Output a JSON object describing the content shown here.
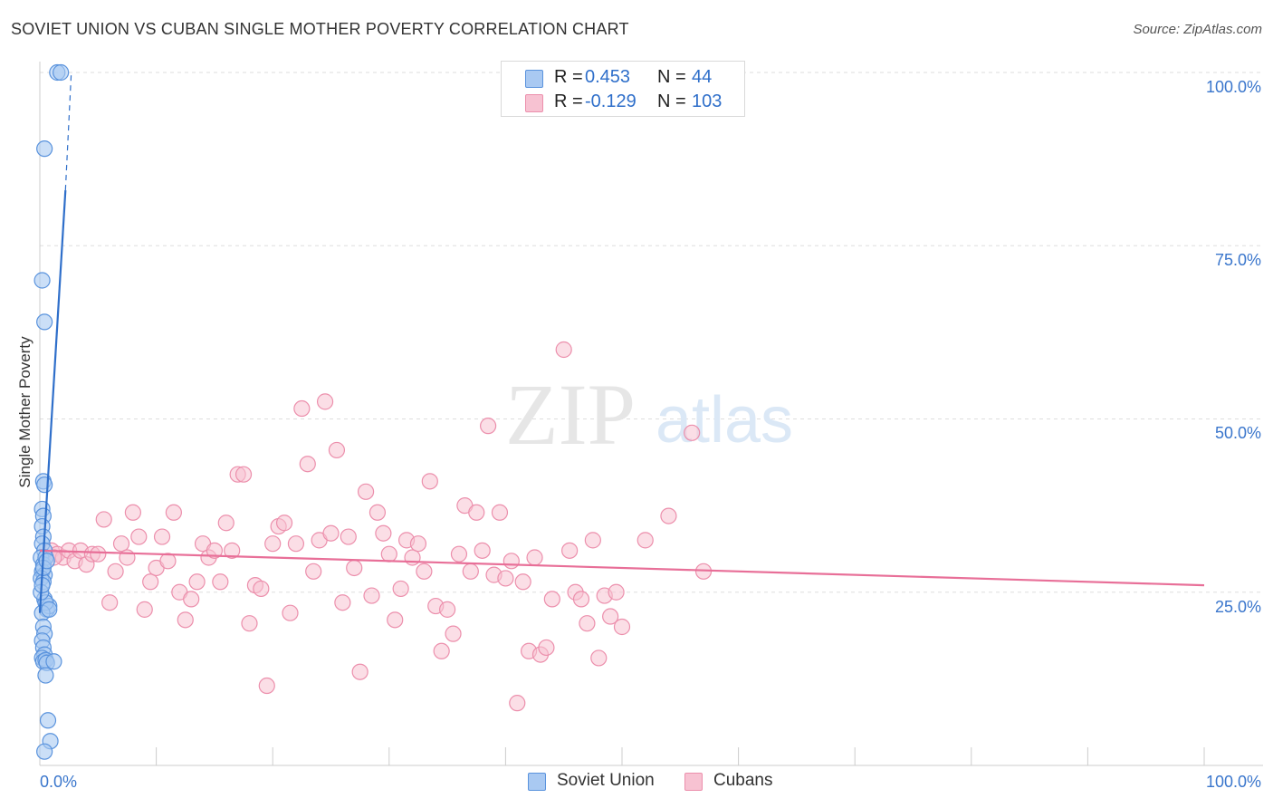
{
  "header": {
    "title": "SOVIET UNION VS CUBAN SINGLE MOTHER POVERTY CORRELATION CHART",
    "source": "Source: ZipAtlas.com"
  },
  "watermark": {
    "zip": "ZIP",
    "atlas": "atlas"
  },
  "legend_top": {
    "rows": [
      {
        "r_label": "R =",
        "r_value": "0.453",
        "n_label": "N =",
        "n_value": "44"
      },
      {
        "r_label": "R =",
        "r_value": "-0.129",
        "n_label": "N =",
        "n_value": "103"
      }
    ]
  },
  "legend_bottom": {
    "items": [
      "Soviet Union",
      "Cubans"
    ]
  },
  "colors": {
    "soviet_fill": "#a9c9f2",
    "soviet_stroke": "#5a93dd",
    "soviet_line": "#2f6fca",
    "cuban_fill": "#f7c2d2",
    "cuban_stroke": "#ec8fac",
    "cuban_line": "#e86f98",
    "tick_label": "#3a76cc",
    "grid": "#dddddd"
  },
  "axes": {
    "ylabel": "Single Mother Poverty",
    "x_tick_labels": [
      "0.0%",
      "100.0%"
    ],
    "y_tick_labels": [
      "100.0%",
      "75.0%",
      "50.0%",
      "25.0%"
    ]
  },
  "chart_data": {
    "type": "scatter",
    "title": "SOVIET UNION VS CUBAN SINGLE MOTHER POVERTY CORRELATION CHART",
    "xlabel": "",
    "ylabel": "Single Mother Poverty",
    "xlim": [
      0,
      100
    ],
    "ylim": [
      0,
      100
    ],
    "y_ticks": [
      25,
      50,
      75,
      100
    ],
    "grid": true,
    "legend_position": "bottom-center",
    "series": [
      {
        "name": "Soviet Union",
        "r": 0.453,
        "n": 44,
        "trend": {
          "x0": 0.0,
          "y0": 22.0,
          "x1": 2.2,
          "y1": 83.0,
          "dash_to": {
            "x": 2.7,
            "y": 100.0
          }
        },
        "points": [
          [
            1.5,
            100.0
          ],
          [
            1.8,
            100.0
          ],
          [
            0.4,
            89.0
          ],
          [
            0.2,
            70.0
          ],
          [
            0.4,
            64.0
          ],
          [
            0.3,
            41.0
          ],
          [
            0.4,
            40.5
          ],
          [
            0.2,
            37.0
          ],
          [
            0.3,
            36.0
          ],
          [
            0.2,
            34.5
          ],
          [
            0.3,
            33.0
          ],
          [
            0.2,
            32.0
          ],
          [
            0.4,
            31.0
          ],
          [
            0.1,
            30.0
          ],
          [
            0.3,
            29.0
          ],
          [
            0.2,
            28.0
          ],
          [
            0.4,
            27.5
          ],
          [
            0.1,
            27.0
          ],
          [
            0.3,
            26.5
          ],
          [
            0.5,
            30.0
          ],
          [
            0.4,
            24.0
          ],
          [
            0.6,
            22.5
          ],
          [
            0.8,
            23.0
          ],
          [
            0.5,
            23.5
          ],
          [
            0.2,
            22.0
          ],
          [
            0.3,
            20.0
          ],
          [
            0.4,
            19.0
          ],
          [
            0.2,
            18.0
          ],
          [
            0.3,
            17.0
          ],
          [
            0.4,
            16.0
          ],
          [
            0.2,
            15.5
          ],
          [
            0.3,
            15.0
          ],
          [
            0.5,
            15.2
          ],
          [
            0.6,
            14.8
          ],
          [
            1.2,
            15.0
          ],
          [
            0.5,
            13.0
          ],
          [
            0.7,
            6.5
          ],
          [
            0.9,
            3.5
          ],
          [
            0.4,
            2.0
          ],
          [
            0.8,
            22.5
          ],
          [
            0.1,
            25.0
          ],
          [
            0.2,
            26.0
          ],
          [
            0.3,
            28.5
          ],
          [
            0.6,
            29.5
          ]
        ]
      },
      {
        "name": "Cubans",
        "r": -0.129,
        "n": 103,
        "trend": {
          "x0": 0.0,
          "y0": 31.0,
          "x1": 100.0,
          "y1": 26.0
        },
        "points": [
          [
            1.0,
            31.0
          ],
          [
            1.5,
            30.5
          ],
          [
            2.0,
            30.0
          ],
          [
            2.5,
            31.0
          ],
          [
            3.0,
            29.5
          ],
          [
            1.2,
            30.0
          ],
          [
            3.5,
            31.0
          ],
          [
            4.0,
            29.0
          ],
          [
            4.5,
            30.5
          ],
          [
            5.0,
            30.5
          ],
          [
            5.5,
            35.5
          ],
          [
            6.0,
            23.5
          ],
          [
            6.5,
            28.0
          ],
          [
            7.0,
            32.0
          ],
          [
            7.5,
            30.0
          ],
          [
            8.0,
            36.5
          ],
          [
            8.5,
            33.0
          ],
          [
            9.0,
            22.5
          ],
          [
            9.5,
            26.5
          ],
          [
            10.0,
            28.5
          ],
          [
            10.5,
            33.0
          ],
          [
            11.0,
            29.5
          ],
          [
            11.5,
            36.5
          ],
          [
            12.0,
            25.0
          ],
          [
            12.5,
            21.0
          ],
          [
            13.0,
            24.0
          ],
          [
            13.5,
            26.5
          ],
          [
            14.0,
            32.0
          ],
          [
            14.5,
            30.0
          ],
          [
            15.0,
            31.0
          ],
          [
            15.5,
            26.5
          ],
          [
            16.0,
            35.0
          ],
          [
            16.5,
            31.0
          ],
          [
            17.0,
            42.0
          ],
          [
            17.5,
            42.0
          ],
          [
            18.0,
            20.5
          ],
          [
            18.5,
            26.0
          ],
          [
            19.0,
            25.5
          ],
          [
            19.5,
            11.5
          ],
          [
            20.0,
            32.0
          ],
          [
            20.5,
            34.5
          ],
          [
            21.0,
            35.0
          ],
          [
            21.5,
            22.0
          ],
          [
            22.0,
            32.0
          ],
          [
            22.5,
            51.5
          ],
          [
            23.0,
            43.5
          ],
          [
            23.5,
            28.0
          ],
          [
            24.0,
            32.5
          ],
          [
            24.5,
            52.5
          ],
          [
            25.0,
            33.5
          ],
          [
            25.5,
            45.5
          ],
          [
            26.0,
            23.5
          ],
          [
            26.5,
            33.0
          ],
          [
            27.0,
            28.5
          ],
          [
            27.5,
            13.5
          ],
          [
            28.0,
            39.5
          ],
          [
            28.5,
            24.5
          ],
          [
            29.0,
            36.5
          ],
          [
            29.5,
            33.5
          ],
          [
            30.0,
            30.5
          ],
          [
            30.5,
            21.0
          ],
          [
            31.0,
            25.5
          ],
          [
            31.5,
            32.5
          ],
          [
            32.0,
            30.0
          ],
          [
            32.5,
            32.0
          ],
          [
            33.0,
            28.0
          ],
          [
            33.5,
            41.0
          ],
          [
            34.0,
            23.0
          ],
          [
            34.5,
            16.5
          ],
          [
            35.0,
            22.5
          ],
          [
            35.5,
            19.0
          ],
          [
            36.0,
            30.5
          ],
          [
            36.5,
            37.5
          ],
          [
            37.0,
            28.0
          ],
          [
            37.5,
            36.5
          ],
          [
            38.0,
            31.0
          ],
          [
            38.5,
            49.0
          ],
          [
            39.0,
            27.5
          ],
          [
            39.5,
            36.5
          ],
          [
            40.0,
            27.0
          ],
          [
            40.5,
            29.5
          ],
          [
            41.0,
            9.0
          ],
          [
            41.5,
            26.5
          ],
          [
            42.0,
            16.5
          ],
          [
            42.5,
            30.0
          ],
          [
            43.0,
            16.0
          ],
          [
            43.5,
            17.0
          ],
          [
            44.0,
            24.0
          ],
          [
            45.0,
            60.0
          ],
          [
            45.5,
            31.0
          ],
          [
            46.0,
            25.0
          ],
          [
            46.5,
            24.0
          ],
          [
            47.0,
            20.5
          ],
          [
            47.5,
            32.5
          ],
          [
            48.0,
            15.5
          ],
          [
            48.5,
            24.5
          ],
          [
            49.0,
            21.5
          ],
          [
            49.5,
            25.0
          ],
          [
            50.0,
            20.0
          ],
          [
            52.0,
            32.5
          ],
          [
            54.0,
            36.0
          ],
          [
            56.0,
            48.0
          ],
          [
            57.0,
            28.0
          ]
        ]
      }
    ]
  }
}
